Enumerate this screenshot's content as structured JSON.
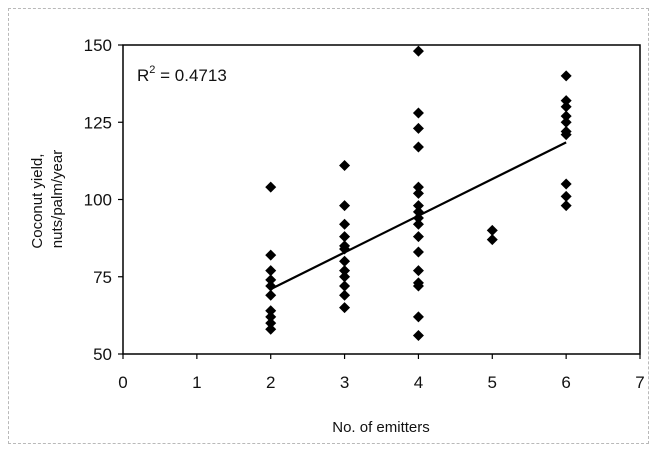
{
  "chart_data": {
    "type": "scatter",
    "title": "",
    "xlabel": "No. of emitters",
    "ylabel_lines": [
      "Coconut yield,",
      "nuts/palm/year"
    ],
    "xlim": [
      0,
      7
    ],
    "ylim": [
      50,
      150
    ],
    "x_ticks": [
      0,
      1,
      2,
      3,
      4,
      5,
      6,
      7
    ],
    "y_ticks": [
      50,
      75,
      100,
      125,
      150
    ],
    "grid": false,
    "legend": "none",
    "annotation": {
      "base": "R",
      "sup": "2",
      "rest": " = 0.4713"
    },
    "marker_color": "#000000",
    "series": [
      {
        "marker": "diamond",
        "points": [
          [
            2,
            104
          ],
          [
            2,
            82
          ],
          [
            2,
            77
          ],
          [
            2,
            74
          ],
          [
            2,
            72
          ],
          [
            2,
            69
          ],
          [
            2,
            64
          ],
          [
            2,
            62
          ],
          [
            2,
            60
          ],
          [
            2,
            58
          ],
          [
            3,
            111
          ],
          [
            3,
            98
          ],
          [
            3,
            92
          ],
          [
            3,
            88
          ],
          [
            3,
            85
          ],
          [
            3,
            84
          ],
          [
            3,
            80
          ],
          [
            3,
            77
          ],
          [
            3,
            75
          ],
          [
            3,
            72
          ],
          [
            3,
            69
          ],
          [
            3,
            65
          ],
          [
            4,
            148
          ],
          [
            4,
            128
          ],
          [
            4,
            123
          ],
          [
            4,
            117
          ],
          [
            4,
            104
          ],
          [
            4,
            102
          ],
          [
            4,
            98
          ],
          [
            4,
            96
          ],
          [
            4,
            94
          ],
          [
            4,
            92
          ],
          [
            4,
            88
          ],
          [
            4,
            83
          ],
          [
            4,
            77
          ],
          [
            4,
            73
          ],
          [
            4,
            72
          ],
          [
            4,
            62
          ],
          [
            4,
            56
          ],
          [
            5,
            90
          ],
          [
            5,
            87
          ],
          [
            6,
            140
          ],
          [
            6,
            132
          ],
          [
            6,
            130
          ],
          [
            6,
            127
          ],
          [
            6,
            125
          ],
          [
            6,
            122
          ],
          [
            6,
            121
          ],
          [
            6,
            105
          ],
          [
            6,
            101
          ],
          [
            6,
            98
          ]
        ]
      }
    ],
    "trendline": {
      "type": "linear",
      "x": [
        2,
        6
      ],
      "y": [
        71,
        118.5
      ]
    }
  }
}
